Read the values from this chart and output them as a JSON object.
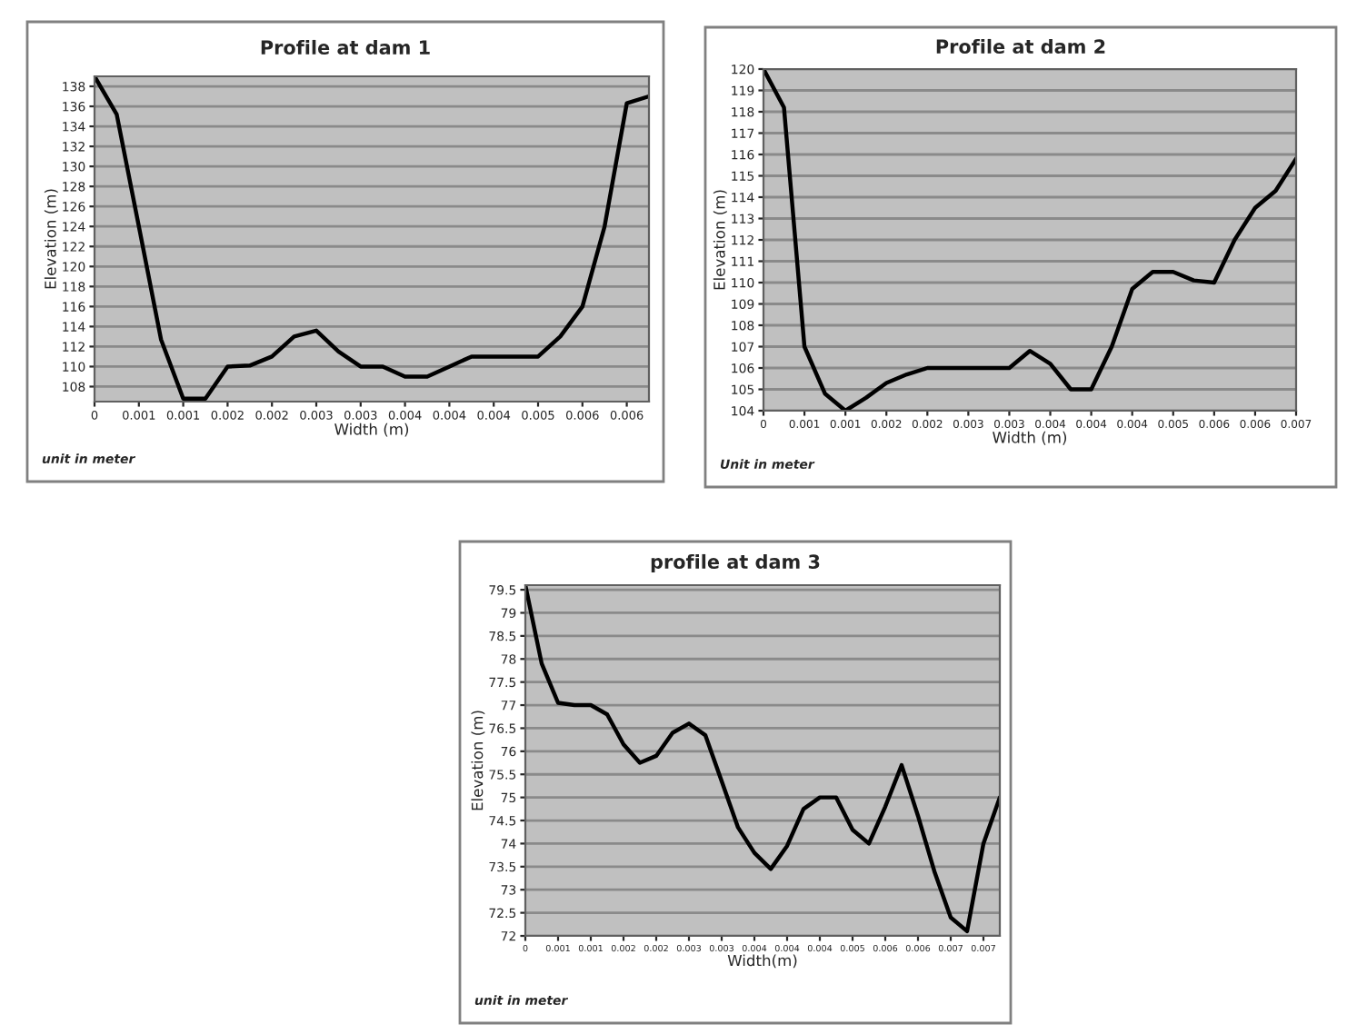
{
  "chart_data": [
    {
      "type": "line",
      "title": "Profile at dam 1",
      "xlabel": "Width (m)",
      "ylabel": "Elevation (m)",
      "annotations": [
        "unit in meter"
      ],
      "color": "#000000",
      "grid": "y",
      "marker": "none",
      "categories": [
        "0",
        null,
        "0.001",
        null,
        "0.001",
        null,
        "0.002",
        null,
        "0.002",
        null,
        "0.003",
        null,
        "0.003",
        null,
        "0.004",
        null,
        "0.004",
        null,
        "0.004",
        null,
        "0.005",
        null,
        "0.006",
        null,
        "0.006",
        null
      ],
      "values": [
        139,
        135.2,
        124,
        112.7,
        106.8,
        106.8,
        110,
        110.1,
        111,
        113,
        113.6,
        111.5,
        110,
        110,
        109,
        109,
        110,
        111,
        111,
        111,
        111,
        113,
        116,
        124,
        136.3,
        137
      ],
      "ylim": [
        106.5,
        139
      ],
      "yticks": [
        108,
        110,
        112,
        114,
        116,
        118,
        120,
        122,
        124,
        126,
        128,
        130,
        132,
        134,
        136,
        138
      ]
    },
    {
      "type": "line",
      "title": "Profile at dam 2",
      "xlabel": "Width (m)",
      "ylabel": "Elevation (m)",
      "annotations": [
        "Unit in meter"
      ],
      "color": "#000000",
      "grid": "y",
      "marker": "none",
      "categories": [
        "0",
        null,
        "0.001",
        null,
        "0.001",
        null,
        "0.002",
        null,
        "0.002",
        null,
        "0.003",
        null,
        "0.003",
        null,
        "0.004",
        null,
        "0.004",
        null,
        "0.004",
        null,
        "0.005",
        null,
        "0.006",
        null,
        "0.006",
        null,
        "0.007"
      ],
      "values": [
        120,
        118.2,
        107,
        104.8,
        104,
        104.6,
        105.3,
        105.7,
        106,
        106,
        106,
        106,
        106,
        106.8,
        106.2,
        105,
        105,
        107,
        109.7,
        110.5,
        110.5,
        110.1,
        110,
        112,
        113.5,
        114.3,
        115.8
      ],
      "ylim": [
        104,
        120
      ],
      "yticks": [
        104,
        105,
        106,
        107,
        108,
        109,
        110,
        111,
        112,
        113,
        114,
        115,
        116,
        117,
        118,
        119,
        120
      ]
    },
    {
      "type": "line",
      "title": "profile at dam 3",
      "xlabel": "Width(m)",
      "ylabel": "Elevation (m)",
      "annotations": [
        "unit in meter"
      ],
      "color": "#000000",
      "grid": "y",
      "marker": "none",
      "categories": [
        "0",
        null,
        "0.001",
        null,
        "0.001",
        null,
        "0.002",
        null,
        "0.002",
        null,
        "0.003",
        null,
        "0.003",
        null,
        "0.004",
        null,
        "0.004",
        null,
        "0.004",
        null,
        "0.005",
        null,
        "0.006",
        null,
        "0.006",
        null,
        "0.007",
        null,
        "0.007",
        null
      ],
      "values": [
        79.6,
        77.9,
        77.05,
        77,
        77,
        76.8,
        76.15,
        75.75,
        75.9,
        76.4,
        76.6,
        76.35,
        75.35,
        74.35,
        73.8,
        73.45,
        73.95,
        74.75,
        75,
        75,
        74.3,
        74,
        74.8,
        75.7,
        74.6,
        73.4,
        72.4,
        72.1,
        74,
        75
      ],
      "ylim": [
        72,
        79.6
      ],
      "yticks": [
        72,
        72.5,
        73,
        73.5,
        74,
        74.5,
        75,
        75.5,
        76,
        76.5,
        77,
        77.5,
        78,
        78.5,
        79,
        79.5
      ]
    }
  ]
}
